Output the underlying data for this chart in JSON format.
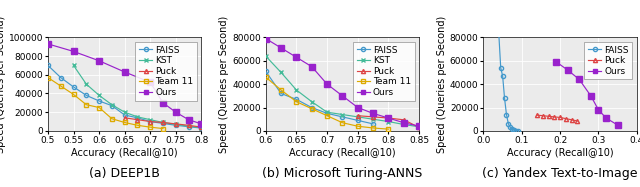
{
  "plots": [
    {
      "title": "(a) DEEP1B",
      "xlabel": "Accuracy (Recall@10)",
      "ylabel": "Speed (Queries per Second)",
      "xlim": [
        0.5,
        0.8
      ],
      "ylim": [
        0,
        100000
      ],
      "xticks": [
        0.5,
        0.55,
        0.6,
        0.65,
        0.7,
        0.75,
        0.8
      ],
      "yticks": [
        0,
        20000,
        40000,
        60000,
        80000,
        100000
      ],
      "ytick_labels": [
        "0",
        "20000",
        "40000",
        "60000",
        "80000",
        "100000"
      ],
      "series": [
        {
          "label": "FAISS",
          "color": "#4499cc",
          "marker": "o",
          "marker_facecolor": "none",
          "linestyle": "-",
          "x": [
            0.5,
            0.525,
            0.55,
            0.575,
            0.6,
            0.625,
            0.65,
            0.675,
            0.7,
            0.725,
            0.75,
            0.775,
            0.8
          ],
          "y": [
            70000,
            57000,
            47000,
            38000,
            32000,
            27000,
            17000,
            14000,
            10000,
            8000,
            6000,
            4500,
            3000
          ]
        },
        {
          "label": "KST",
          "color": "#44bb99",
          "marker": "x",
          "marker_facecolor": "same",
          "linestyle": "-",
          "x": [
            0.55,
            0.575,
            0.6,
            0.625,
            0.65,
            0.675,
            0.7,
            0.725,
            0.75,
            0.775,
            0.8
          ],
          "y": [
            70000,
            50000,
            38000,
            28000,
            20000,
            15000,
            12000,
            9000,
            7000,
            5000,
            3500
          ]
        },
        {
          "label": "Puck",
          "color": "#dd4444",
          "marker": "^",
          "marker_facecolor": "none",
          "linestyle": "-",
          "x": [
            0.65,
            0.675,
            0.7,
            0.725,
            0.75,
            0.775,
            0.8
          ],
          "y": [
            14000,
            12000,
            10000,
            9000,
            7500,
            6000,
            4000
          ]
        },
        {
          "label": "Team 11",
          "color": "#ddaa00",
          "marker": "s",
          "marker_facecolor": "none",
          "linestyle": "-",
          "x": [
            0.5,
            0.525,
            0.55,
            0.575,
            0.6,
            0.625,
            0.65,
            0.675,
            0.7,
            0.725
          ],
          "y": [
            57000,
            48000,
            39000,
            28000,
            25000,
            13000,
            9000,
            6000,
            4000,
            2500
          ]
        },
        {
          "label": "Ours",
          "color": "#9922cc",
          "marker": "s",
          "marker_facecolor": "same",
          "linestyle": "-",
          "x": [
            0.5,
            0.55,
            0.6,
            0.65,
            0.7,
            0.725,
            0.75,
            0.775,
            0.8
          ],
          "y": [
            93000,
            85000,
            75000,
            63000,
            52000,
            30000,
            20000,
            12000,
            7500
          ]
        }
      ]
    },
    {
      "title": "(b) Microsoft Turing-ANNS",
      "xlabel": "Accuracy (Recall@10)",
      "ylabel": "Speed (Queries per Second)",
      "xlim": [
        0.6,
        0.85
      ],
      "ylim": [
        0,
        80000
      ],
      "xticks": [
        0.6,
        0.65,
        0.7,
        0.75,
        0.8,
        0.85
      ],
      "yticks": [
        0,
        20000,
        40000,
        60000,
        80000
      ],
      "ytick_labels": [
        "0",
        "20000",
        "40000",
        "60000",
        "80000"
      ],
      "series": [
        {
          "label": "FAISS",
          "color": "#4499cc",
          "marker": "o",
          "marker_facecolor": "none",
          "linestyle": "-",
          "x": [
            0.6,
            0.625,
            0.65,
            0.675,
            0.7,
            0.725,
            0.75,
            0.775
          ],
          "y": [
            51000,
            32000,
            27000,
            20000,
            15000,
            12000,
            9000,
            6000
          ]
        },
        {
          "label": "KST",
          "color": "#44bb99",
          "marker": "x",
          "marker_facecolor": "same",
          "linestyle": "-",
          "x": [
            0.6,
            0.625,
            0.65,
            0.675,
            0.7,
            0.725,
            0.75,
            0.775,
            0.8,
            0.825,
            0.85
          ],
          "y": [
            64000,
            50000,
            35000,
            25000,
            16000,
            14000,
            12000,
            10000,
            8000,
            5500,
            3500
          ]
        },
        {
          "label": "Puck",
          "color": "#dd4444",
          "marker": "^",
          "marker_facecolor": "none",
          "linestyle": "-",
          "x": [
            0.75,
            0.775,
            0.8,
            0.825,
            0.85
          ],
          "y": [
            13000,
            12000,
            11000,
            9500,
            3000
          ]
        },
        {
          "label": "Team 11",
          "color": "#ddaa00",
          "marker": "s",
          "marker_facecolor": "none",
          "linestyle": "-",
          "x": [
            0.6,
            0.625,
            0.65,
            0.675,
            0.7,
            0.725,
            0.75,
            0.775,
            0.8
          ],
          "y": [
            46000,
            35000,
            25000,
            19000,
            13000,
            7000,
            4000,
            2500,
            1500
          ]
        },
        {
          "label": "Ours",
          "color": "#9922cc",
          "marker": "s",
          "marker_facecolor": "same",
          "linestyle": "-",
          "x": [
            0.6,
            0.625,
            0.65,
            0.675,
            0.7,
            0.725,
            0.75,
            0.775,
            0.8,
            0.825,
            0.85
          ],
          "y": [
            79000,
            71000,
            63000,
            55000,
            40000,
            30000,
            20000,
            15000,
            11000,
            7000,
            4000
          ]
        }
      ]
    },
    {
      "title": "(c) Yandex Text-to-Image",
      "xlabel": "Accuracy (Recall@10)",
      "ylabel": "Speed (Queries per Second)",
      "xlim": [
        0.0,
        0.4
      ],
      "ylim": [
        0,
        80000
      ],
      "xticks": [
        0.0,
        0.1,
        0.2,
        0.3,
        0.4
      ],
      "yticks": [
        0,
        20000,
        40000,
        60000,
        80000
      ],
      "ytick_labels": [
        "0",
        "20000",
        "40000",
        "60000",
        "80000"
      ],
      "series": [
        {
          "label": "FAISS",
          "color": "#4499cc",
          "marker": "o",
          "marker_facecolor": "none",
          "linestyle": "-",
          "x": [
            0.04,
            0.045,
            0.05,
            0.055,
            0.06,
            0.065,
            0.07,
            0.075,
            0.08,
            0.085,
            0.09
          ],
          "y": [
            83000,
            54000,
            47000,
            28000,
            14000,
            6000,
            3000,
            1500,
            800,
            300,
            100
          ]
        },
        {
          "label": "Puck",
          "color": "#dd4444",
          "marker": "^",
          "marker_facecolor": "none",
          "linestyle": "-",
          "x": [
            0.14,
            0.155,
            0.17,
            0.185,
            0.2,
            0.215,
            0.23,
            0.245
          ],
          "y": [
            13500,
            13000,
            12500,
            12000,
            11500,
            10500,
            9500,
            8500
          ]
        },
        {
          "label": "Ours",
          "color": "#9922cc",
          "marker": "s",
          "marker_facecolor": "same",
          "linestyle": "-",
          "x": [
            0.19,
            0.22,
            0.25,
            0.28,
            0.3,
            0.32,
            0.35
          ],
          "y": [
            59000,
            52000,
            44000,
            30000,
            18000,
            11000,
            5000
          ]
        }
      ]
    }
  ],
  "background_color": "#ebebeb",
  "fontsize_title": 9,
  "fontsize_label": 7,
  "fontsize_tick": 6.5,
  "fontsize_legend": 6.5
}
